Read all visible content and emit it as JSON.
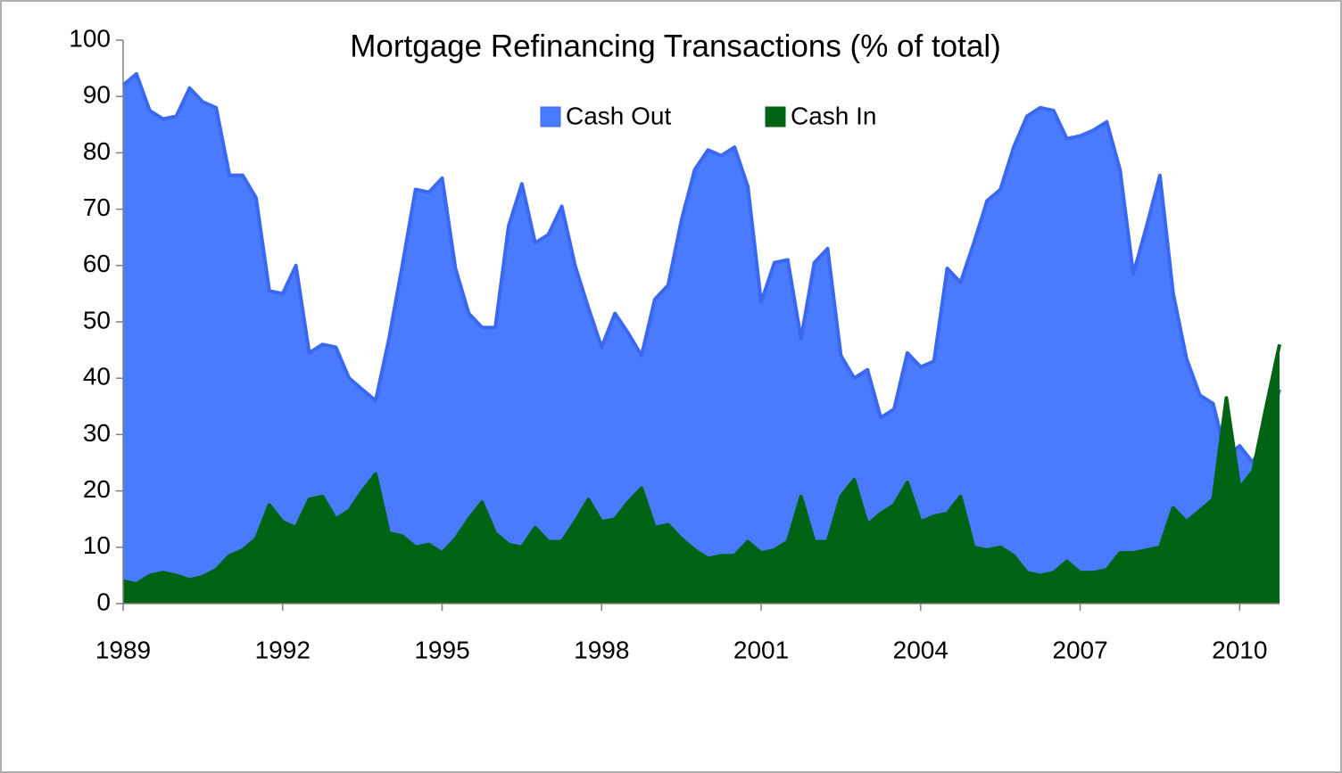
{
  "chart_data": {
    "type": "area",
    "title": "Mortgage Refinancing Transactions (% of total)",
    "x": [
      1989,
      1989.25,
      1989.5,
      1989.75,
      1990,
      1990.25,
      1990.5,
      1990.75,
      1991,
      1991.25,
      1991.5,
      1991.75,
      1992,
      1992.25,
      1992.5,
      1992.75,
      1993,
      1993.25,
      1993.5,
      1993.75,
      1994,
      1994.25,
      1994.5,
      1994.75,
      1995,
      1995.25,
      1995.5,
      1995.75,
      1996,
      1996.25,
      1996.5,
      1996.75,
      1997,
      1997.25,
      1997.5,
      1997.75,
      1998,
      1998.25,
      1998.5,
      1998.75,
      1999,
      1999.25,
      1999.5,
      1999.75,
      2000,
      2000.25,
      2000.5,
      2000.75,
      2001,
      2001.25,
      2001.5,
      2001.75,
      2002,
      2002.25,
      2002.5,
      2002.75,
      2003,
      2003.25,
      2003.5,
      2003.75,
      2004,
      2004.25,
      2004.5,
      2004.75,
      2005,
      2005.25,
      2005.5,
      2005.75,
      2006,
      2006.25,
      2006.5,
      2006.75,
      2007,
      2007.25,
      2007.5,
      2007.75,
      2008,
      2008.25,
      2008.5,
      2008.75,
      2009,
      2009.25,
      2009.5,
      2009.75,
      2010,
      2010.25,
      2010.5,
      2010.75
    ],
    "series": [
      {
        "name": "Cash Out",
        "color": "#4a7bff",
        "line_color": "#3a68f2",
        "values": [
          92,
          94,
          87.5,
          86,
          86.5,
          91.5,
          89,
          88,
          76,
          76,
          72,
          55.5,
          55,
          60,
          44.5,
          46,
          45.5,
          40,
          38,
          36,
          47,
          60,
          73.5,
          73,
          75.5,
          59.5,
          51.5,
          49,
          49,
          67,
          74.5,
          64,
          65.5,
          70.5,
          60,
          52.5,
          45.5,
          51.5,
          48,
          44,
          54,
          56.5,
          68,
          77,
          80.5,
          79.5,
          81,
          74,
          53.5,
          60.5,
          61,
          47,
          60.5,
          63,
          44,
          40,
          41.5,
          33,
          34.5,
          44.5,
          42,
          43,
          59.5,
          57,
          64,
          71.5,
          73.5,
          81,
          86.5,
          88,
          87.5,
          82.5,
          83,
          84,
          85.5,
          77,
          58.5,
          67,
          76,
          55,
          43.5,
          37,
          35.5,
          26,
          28,
          25,
          30,
          38
        ]
      },
      {
        "name": "Cash In",
        "color": "#006414",
        "line_color": "#006414",
        "values": [
          4,
          3.5,
          5,
          5.5,
          5,
          4.2,
          4.8,
          6,
          8.5,
          9.5,
          11.5,
          17.5,
          14.5,
          13.5,
          18.5,
          19,
          15,
          16.5,
          20,
          23,
          12.5,
          12,
          10,
          10.5,
          9,
          11.5,
          15,
          18,
          12.5,
          10.5,
          10,
          13.5,
          11,
          11,
          14.5,
          18.5,
          14.5,
          15,
          18,
          20.5,
          13.5,
          14,
          11.5,
          9.5,
          8,
          8.5,
          8.5,
          11,
          9,
          9.5,
          11,
          19,
          11,
          11,
          19,
          22,
          14,
          16,
          17.5,
          21.5,
          14.5,
          15.5,
          16,
          19,
          10,
          9.5,
          10,
          8.5,
          5.5,
          5,
          5.5,
          7.5,
          5.5,
          5.5,
          6,
          9,
          9,
          9.5,
          10,
          17,
          14.5,
          16.5,
          18.5,
          36.5,
          20.5,
          23.5,
          35,
          46
        ]
      }
    ],
    "xlim": [
      1989,
      2010.75
    ],
    "xticks": [
      1989,
      1992,
      1995,
      1998,
      2001,
      2004,
      2007,
      2010
    ],
    "ylim": [
      0,
      100
    ],
    "yticks": [
      0,
      10,
      20,
      30,
      40,
      50,
      60,
      70,
      80,
      90,
      100
    ],
    "legend": "top"
  }
}
